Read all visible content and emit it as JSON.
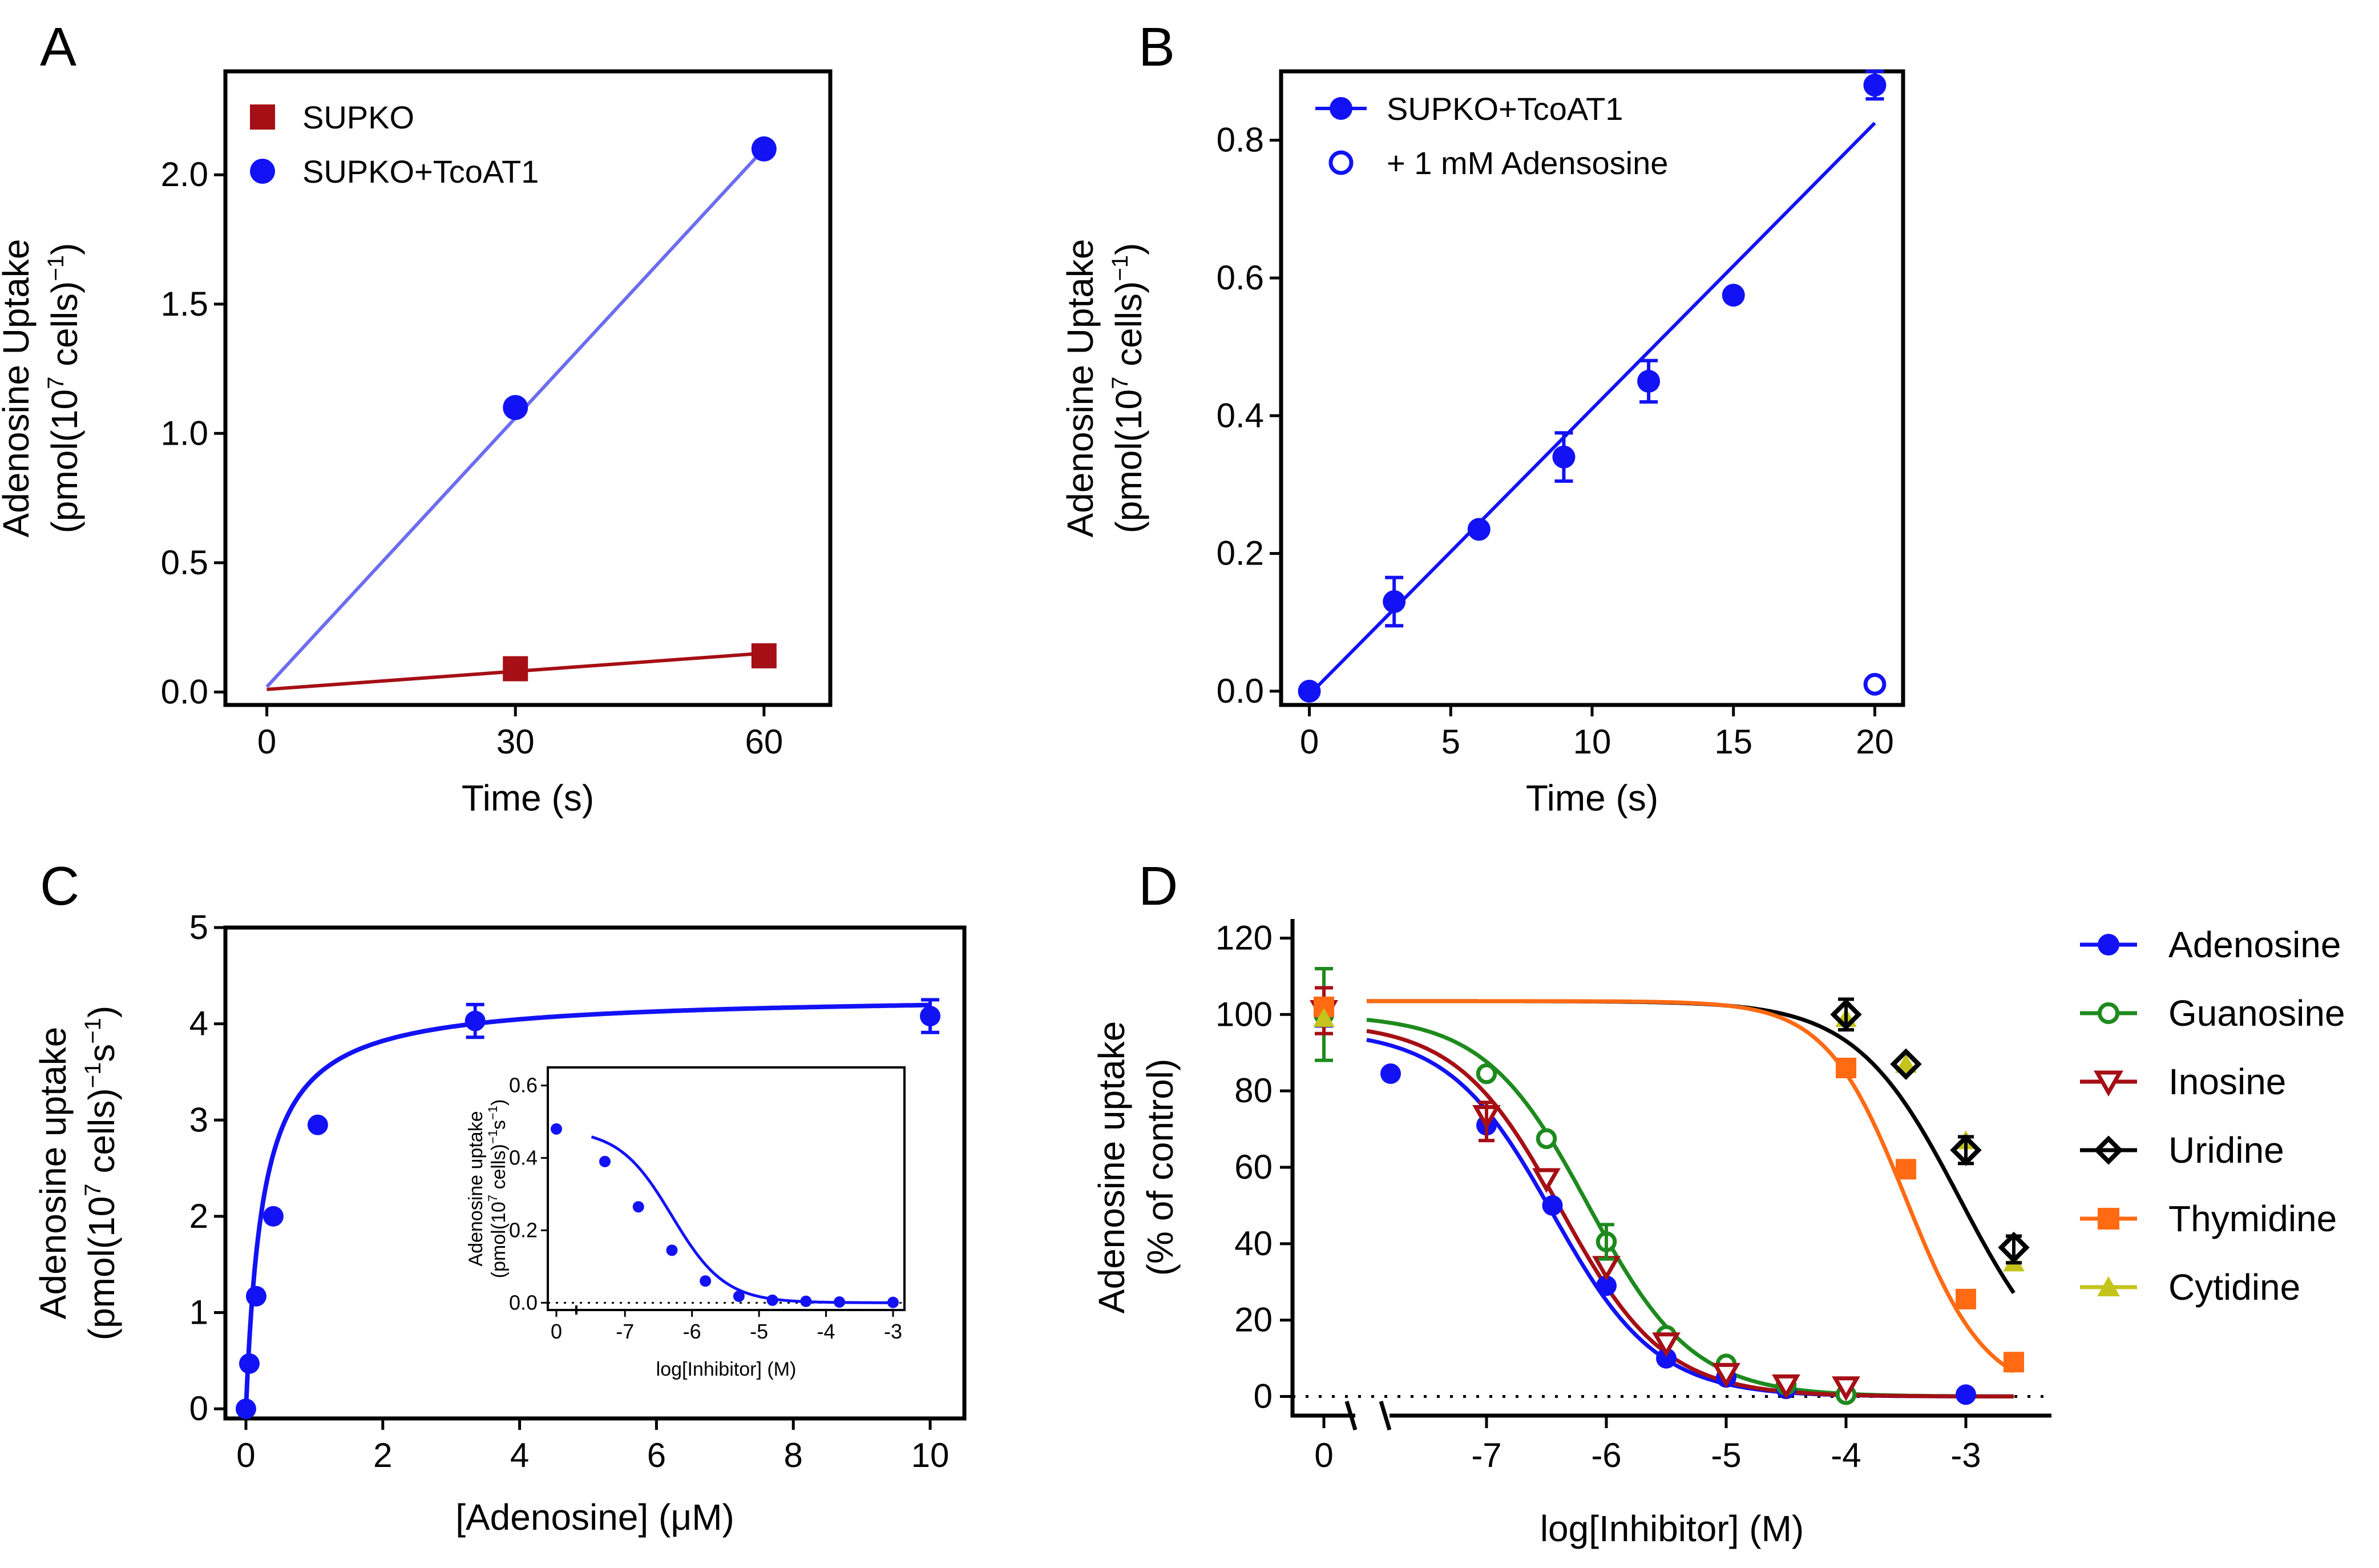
{
  "chart_data": [
    {
      "panel": "A",
      "type": "scatter",
      "xlabel": "Time (s)",
      "ylabel_line1": "Adenosine Uptake",
      "ylabel_line2": "(pmol(10",
      "ylabel_exp": "7",
      "ylabel_line2b": " cells)",
      "ylabel_exp2": "−1",
      "ylabel_line2c": ")",
      "xlim": [
        -5,
        68
      ],
      "ylim": [
        -0.05,
        2.4
      ],
      "xticks": [
        0,
        30,
        60
      ],
      "xticklabels": [
        "0",
        "30",
        "60"
      ],
      "yticks": [
        0,
        0.5,
        1.0,
        1.5,
        2.0
      ],
      "yticklabels": [
        "0.0",
        "0.5",
        "1.0",
        "1.5",
        "2.0"
      ],
      "legend": [
        {
          "name": "SUPKO",
          "color": "#a50f15",
          "marker": "square"
        },
        {
          "name": "SUPKO+TcoAT1",
          "color": "#1212f5",
          "marker": "circle"
        }
      ],
      "series": [
        {
          "name": "SUPKO",
          "color": "#a50f15",
          "marker": "square",
          "points": [
            [
              30,
              0.09
            ],
            [
              60,
              0.14
            ]
          ],
          "fit": [
            [
              0,
              0.01
            ],
            [
              60,
              0.15
            ]
          ]
        },
        {
          "name": "SUPKO+TcoAT1",
          "color": "#1212f5",
          "marker": "circle",
          "points": [
            [
              30,
              1.1
            ],
            [
              60,
              2.1
            ]
          ],
          "fit": [
            [
              0,
              0.02
            ],
            [
              60,
              2.1
            ]
          ],
          "fitColor": "#6d6cf0"
        }
      ]
    },
    {
      "panel": "B",
      "type": "scatter",
      "xlabel": "Time (s)",
      "ylabel_line1": "Adenosine Uptake",
      "ylabel_line2": "(pmol(10",
      "ylabel_exp": "7",
      "ylabel_line2b": " cells)",
      "ylabel_exp2": "−1",
      "ylabel_line2c": ")",
      "xlim": [
        -1,
        21
      ],
      "ylim": [
        -0.02,
        0.9
      ],
      "xticks": [
        0,
        5,
        10,
        15,
        20
      ],
      "xticklabels": [
        "0",
        "5",
        "10",
        "15",
        "20"
      ],
      "yticks": [
        0,
        0.2,
        0.4,
        0.6,
        0.8
      ],
      "yticklabels": [
        "0.0",
        "0.2",
        "0.4",
        "0.6",
        "0.8"
      ],
      "legend": [
        {
          "name": "SUPKO+TcoAT1",
          "color": "#1212f5",
          "marker": "circle-line"
        },
        {
          "name": "+ 1 mM Adensosine",
          "color": "#1212f5",
          "marker": "open-circle"
        }
      ],
      "series": [
        {
          "name": "SUPKO+TcoAT1",
          "color": "#1212f5",
          "marker": "circle",
          "points": [
            [
              0,
              0.0,
              0
            ],
            [
              3,
              0.13,
              0.035
            ],
            [
              6,
              0.235,
              0
            ],
            [
              9,
              0.34,
              0.035
            ],
            [
              12,
              0.45,
              0.03
            ],
            [
              15,
              0.575,
              0
            ],
            [
              20,
              0.88,
              0.02
            ]
          ],
          "fit": [
            [
              0,
              -0.005
            ],
            [
              20,
              0.825
            ]
          ]
        },
        {
          "name": "+ 1 mM Adensosine",
          "color": "#1212f5",
          "marker": "open-circle",
          "points": [
            [
              20,
              0.01,
              0
            ]
          ]
        }
      ]
    },
    {
      "panel": "C",
      "type": "scatter",
      "xlabel": "[Adenosine] (μM)",
      "ylabel_line1": "Adenosine uptake",
      "ylabel_line2": "(pmol(10",
      "ylabel_exp": "7",
      "ylabel_line2b": " cells)",
      "ylabel_exp2": "−1",
      "ylabel_line2c": "s",
      "ylabel_exp3": "−1",
      "ylabel_line2d": ")",
      "xlim": [
        -0.3,
        10.5
      ],
      "ylim": [
        -0.1,
        5
      ],
      "xticks": [
        0,
        2,
        4,
        6,
        8,
        10
      ],
      "xticklabels": [
        "0",
        "2",
        "4",
        "6",
        "8",
        "10"
      ],
      "yticks": [
        0,
        1,
        2,
        3,
        4,
        5
      ],
      "yticklabels": [
        "0",
        "1",
        "2",
        "3",
        "4",
        "5"
      ],
      "vmax": 4.3,
      "km": 0.25,
      "color": "#1212f5",
      "points": [
        [
          0,
          0,
          0
        ],
        [
          0.05,
          0.47,
          0
        ],
        [
          0.15,
          1.17,
          0
        ],
        [
          0.4,
          2.0,
          0
        ],
        [
          1.05,
          2.95,
          0
        ],
        [
          3.35,
          4.03,
          0.17
        ],
        [
          10,
          4.08,
          0.17
        ]
      ],
      "inset": {
        "xlabel": "log[Inhibitor] (M)",
        "ylabel_line1": "Adenosine uptake",
        "ylabel_line2": "(pmol(10",
        "ylabel_exp": "7",
        "ylabel_line2b": " cells)",
        "ylabel_exp2": "−1",
        "ylabel_line2c": "s",
        "ylabel_exp3": "−1",
        "ylabel_line2d": ")",
        "xticks": [
          0,
          -7,
          -6,
          -5,
          -4,
          -3
        ],
        "xticklabels": [
          "0",
          "-7",
          "-6",
          "-5",
          "-4",
          "-3"
        ],
        "yticks": [
          0,
          0.2,
          0.4,
          0.6
        ],
        "yticklabels": [
          "0.0",
          "0.2",
          "0.4",
          "0.6"
        ],
        "ylim": [
          -0.02,
          0.65
        ],
        "top": 0.48,
        "ic50_log": -6.3,
        "hill": 1.1,
        "points": [
          [
            0,
            0.48
          ],
          [
            -7.3,
            0.39
          ],
          [
            -6.8,
            0.265
          ],
          [
            -6.3,
            0.145
          ],
          [
            -5.8,
            0.06
          ],
          [
            -5.3,
            0.018
          ],
          [
            -4.8,
            0.007
          ],
          [
            -4.3,
            0.004
          ],
          [
            -3.8,
            0.002
          ],
          [
            -3.0,
            0.001
          ]
        ]
      }
    },
    {
      "panel": "D",
      "type": "line",
      "xlabel": "log[Inhibitor] (M)",
      "ylabel_line1": "Adenosine uptake",
      "ylabel_line2": "(% of control)",
      "ylim": [
        -5,
        125
      ],
      "xticks": [
        0,
        -7,
        -6,
        -5,
        -4,
        -3
      ],
      "xticklabels": [
        "0",
        "-7",
        "-6",
        "-5",
        "-4",
        "-3"
      ],
      "yticks": [
        0,
        20,
        40,
        60,
        80,
        100,
        120
      ],
      "yticklabels": [
        "0",
        "20",
        "40",
        "60",
        "80",
        "100",
        "120"
      ],
      "series": [
        {
          "name": "Adenosine",
          "color": "#1212f5",
          "marker": "circle",
          "ic50_log": -6.45,
          "hill": 1.0,
          "top": 96,
          "control": [
            100,
            3
          ],
          "points": [
            [
              -7.8,
              84.5
            ],
            [
              -7.0,
              71
            ],
            [
              -6.45,
              50
            ],
            [
              -6.0,
              29
            ],
            [
              -5.5,
              10
            ],
            [
              -5.0,
              5
            ],
            [
              -4.5,
              2
            ],
            [
              -3.0,
              0.5
            ]
          ]
        },
        {
          "name": "Guanosine",
          "color": "#1e8a1e",
          "marker": "open-circle",
          "ic50_log": -6.15,
          "hill": 1.0,
          "top": 100,
          "control": [
            100,
            12
          ],
          "points": [
            [
              -7.0,
              84.5
            ],
            [
              -6.5,
              67.5
            ],
            [
              -6.0,
              40.5
            ],
            [
              -5.5,
              16
            ],
            [
              -5.0,
              8.5
            ],
            [
              -4.5,
              3
            ],
            [
              -4.0,
              0.5
            ]
          ]
        },
        {
          "name": "Inosine",
          "color": "#a50f15",
          "marker": "open-triangle-down",
          "ic50_log": -6.38,
          "hill": 1.0,
          "top": 98,
          "control": [
            101,
            6
          ],
          "points": [
            [
              -7.0,
              73.5
            ],
            [
              -6.5,
              57
            ],
            [
              -6.0,
              34
            ],
            [
              -5.5,
              14
            ],
            [
              -5.0,
              6
            ],
            [
              -4.5,
              3
            ],
            [
              -4.0,
              2.5
            ]
          ]
        },
        {
          "name": "Uridine",
          "color": "#000000",
          "marker": "open-diamond",
          "ic50_log": -3.05,
          "hill": 1.0,
          "top": 103.5,
          "points": [
            [
              -4.0,
              100
            ],
            [
              -3.5,
              87
            ],
            [
              -3.0,
              64.5
            ],
            [
              -2.6,
              39
            ]
          ]
        },
        {
          "name": "Thymidine",
          "color": "#ff6a13",
          "marker": "square",
          "ic50_log": -3.5,
          "hill": 1.3,
          "top": 103.5,
          "control": [
            102,
            0
          ],
          "points": [
            [
              -4.0,
              86
            ],
            [
              -3.5,
              59.5
            ],
            [
              -3.0,
              25.5
            ],
            [
              -2.6,
              9
            ]
          ]
        },
        {
          "name": "Cytidine",
          "color": "#c4c41c",
          "marker": "triangle-up",
          "control": [
            99,
            0
          ],
          "points": [
            [
              -4.0,
              99
            ],
            [
              -3.5,
              87
            ],
            [
              -3.0,
              67
            ],
            [
              -2.6,
              35
            ]
          ]
        }
      ]
    }
  ]
}
